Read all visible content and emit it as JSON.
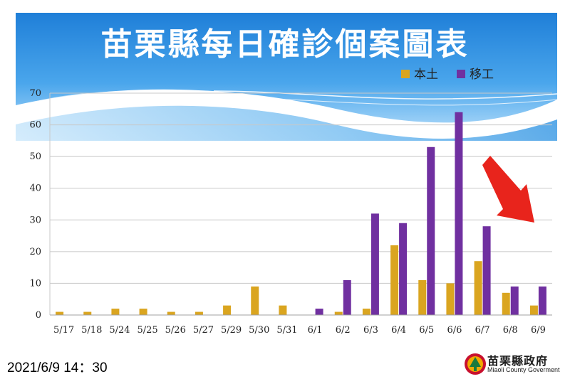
{
  "title": "苗栗縣每日確診個案圖表",
  "timestamp": "2021/6/9 14：30",
  "government": {
    "name": "苗栗縣政府",
    "english_name": "Miaoli County Goverment"
  },
  "colors": {
    "local": "#DAA520",
    "migrant": "#7030A0",
    "arrow": "#E8241C",
    "header_blue": "#2f8ee0"
  },
  "chart_data": {
    "type": "bar",
    "title": "苗栗縣每日確診個案圖表",
    "categories": [
      "5/17",
      "5/18",
      "5/24",
      "5/25",
      "5/26",
      "5/27",
      "5/29",
      "5/30",
      "5/31",
      "6/1",
      "6/2",
      "6/3",
      "6/4",
      "6/5",
      "6/6",
      "6/7",
      "6/8",
      "6/9"
    ],
    "series": [
      {
        "name": "本土",
        "color": "#DAA520",
        "values": [
          1,
          1,
          2,
          2,
          1,
          1,
          3,
          9,
          3,
          0,
          1,
          2,
          22,
          11,
          10,
          17,
          7,
          3
        ]
      },
      {
        "name": "移工",
        "color": "#7030A0",
        "values": [
          0,
          0,
          0,
          0,
          0,
          0,
          0,
          0,
          0,
          2,
          11,
          32,
          29,
          53,
          64,
          28,
          9,
          9
        ]
      }
    ],
    "ylim": [
      0,
      70
    ],
    "yticks": [
      0,
      10,
      20,
      30,
      40,
      50,
      60,
      70
    ],
    "grid": true,
    "legend_position": "top-right",
    "annotation": "red-arrow-down-right"
  }
}
